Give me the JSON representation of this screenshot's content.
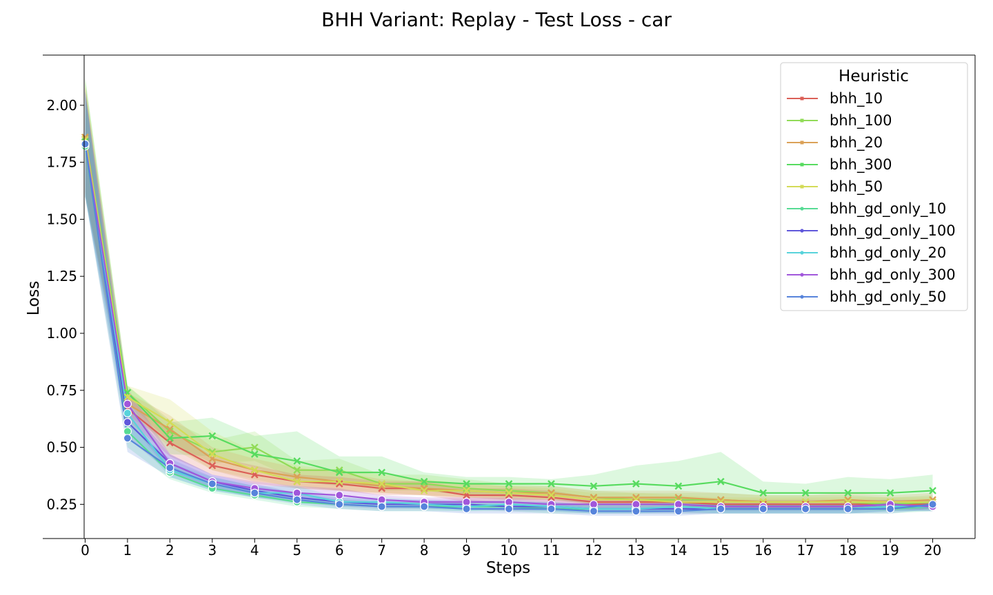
{
  "chart_data": {
    "type": "line",
    "title": "BHH Variant: Replay - Test Loss - car",
    "xlabel": "Steps",
    "ylabel": "Loss",
    "x": [
      0,
      1,
      2,
      3,
      4,
      5,
      6,
      7,
      8,
      9,
      10,
      11,
      12,
      13,
      14,
      15,
      16,
      17,
      18,
      19,
      20
    ],
    "xlim": [
      -1,
      21
    ],
    "ylim": [
      0.1,
      2.22
    ],
    "yticks": [
      0.25,
      0.5,
      0.75,
      1.0,
      1.25,
      1.5,
      1.75,
      2.0
    ],
    "ytick_labels": [
      "0.25",
      "0.50",
      "0.75",
      "1.00",
      "1.25",
      "1.50",
      "1.75",
      "2.00"
    ],
    "xtick_labels": [
      "0",
      "1",
      "2",
      "3",
      "4",
      "5",
      "6",
      "7",
      "8",
      "9",
      "10",
      "11",
      "12",
      "13",
      "14",
      "15",
      "16",
      "17",
      "18",
      "19",
      "20"
    ],
    "legend": {
      "title": "Heuristic",
      "position": "upper right"
    },
    "grid": false,
    "series": [
      {
        "name": "bhh_10",
        "color": "#db5f57",
        "marker": "x",
        "values": [
          1.85,
          0.67,
          0.52,
          0.42,
          0.38,
          0.35,
          0.34,
          0.32,
          0.32,
          0.29,
          0.29,
          0.28,
          0.26,
          0.26,
          0.26,
          0.25,
          0.25,
          0.25,
          0.25,
          0.25,
          0.25
        ]
      },
      {
        "name": "bhh_100",
        "color": "#91db57",
        "marker": "x",
        "values": [
          1.86,
          0.74,
          0.57,
          0.48,
          0.5,
          0.4,
          0.4,
          0.34,
          0.34,
          0.32,
          0.31,
          0.3,
          0.28,
          0.27,
          0.27,
          0.27,
          0.26,
          0.26,
          0.26,
          0.25,
          0.26
        ]
      },
      {
        "name": "bhh_20",
        "color": "#dba157",
        "marker": "x",
        "values": [
          1.86,
          0.69,
          0.58,
          0.45,
          0.4,
          0.37,
          0.35,
          0.33,
          0.32,
          0.31,
          0.3,
          0.3,
          0.28,
          0.28,
          0.28,
          0.27,
          0.26,
          0.26,
          0.27,
          0.26,
          0.27
        ]
      },
      {
        "name": "bhh_300",
        "color": "#57db5f",
        "marker": "x",
        "values": [
          1.84,
          0.74,
          0.54,
          0.55,
          0.47,
          0.44,
          0.39,
          0.39,
          0.35,
          0.34,
          0.34,
          0.34,
          0.33,
          0.34,
          0.33,
          0.35,
          0.3,
          0.3,
          0.3,
          0.3,
          0.31
        ]
      },
      {
        "name": "bhh_50",
        "color": "#d3db57",
        "marker": "x",
        "values": [
          1.85,
          0.72,
          0.61,
          0.47,
          0.4,
          0.35,
          0.35,
          0.34,
          0.31,
          0.31,
          0.3,
          0.29,
          0.27,
          0.27,
          0.26,
          0.26,
          0.26,
          0.26,
          0.26,
          0.26,
          0.26
        ]
      },
      {
        "name": "bhh_gd_only_10",
        "color": "#57db94",
        "marker": "o",
        "values": [
          1.82,
          0.57,
          0.39,
          0.32,
          0.29,
          0.26,
          0.25,
          0.24,
          0.24,
          0.24,
          0.24,
          0.23,
          0.23,
          0.23,
          0.23,
          0.23,
          0.23,
          0.23,
          0.23,
          0.23,
          0.24
        ]
      },
      {
        "name": "bhh_gd_only_100",
        "color": "#5f57db",
        "marker": "o",
        "values": [
          1.83,
          0.61,
          0.43,
          0.35,
          0.31,
          0.28,
          0.26,
          0.25,
          0.25,
          0.25,
          0.24,
          0.24,
          0.23,
          0.23,
          0.23,
          0.23,
          0.23,
          0.23,
          0.23,
          0.24,
          0.24
        ]
      },
      {
        "name": "bhh_gd_only_20",
        "color": "#57d3db",
        "marker": "o",
        "values": [
          1.83,
          0.65,
          0.4,
          0.34,
          0.3,
          0.3,
          0.26,
          0.26,
          0.25,
          0.24,
          0.25,
          0.24,
          0.23,
          0.23,
          0.24,
          0.23,
          0.23,
          0.23,
          0.23,
          0.24,
          0.24
        ]
      },
      {
        "name": "bhh_gd_only_300",
        "color": "#a157db",
        "marker": "o",
        "values": [
          1.83,
          0.69,
          0.43,
          0.35,
          0.32,
          0.3,
          0.29,
          0.27,
          0.26,
          0.26,
          0.26,
          0.25,
          0.25,
          0.25,
          0.25,
          0.24,
          0.24,
          0.24,
          0.24,
          0.25,
          0.24
        ]
      },
      {
        "name": "bhh_gd_only_50",
        "color": "#5784db",
        "marker": "o",
        "values": [
          1.83,
          0.54,
          0.41,
          0.34,
          0.3,
          0.27,
          0.25,
          0.24,
          0.24,
          0.23,
          0.23,
          0.23,
          0.22,
          0.22,
          0.22,
          0.23,
          0.23,
          0.23,
          0.23,
          0.23,
          0.25
        ]
      }
    ],
    "bands": [
      {
        "series": "bhh_300",
        "lower": [
          1.6,
          0.7,
          0.47,
          0.46,
          0.41,
          0.35,
          0.33,
          0.33,
          0.31,
          0.29,
          0.29,
          0.29,
          0.28,
          0.26,
          0.25,
          0.22,
          0.25,
          0.26,
          0.25,
          0.26,
          0.26
        ],
        "upper": [
          2.12,
          0.77,
          0.61,
          0.63,
          0.55,
          0.57,
          0.46,
          0.46,
          0.39,
          0.37,
          0.37,
          0.36,
          0.38,
          0.42,
          0.44,
          0.48,
          0.35,
          0.34,
          0.37,
          0.36,
          0.38
        ]
      },
      {
        "series": "bhh_50",
        "lower": [
          1.6,
          0.66,
          0.5,
          0.4,
          0.36,
          0.32,
          0.31,
          0.3,
          0.29,
          0.28,
          0.27,
          0.27,
          0.25,
          0.25,
          0.24,
          0.24,
          0.24,
          0.24,
          0.24,
          0.24,
          0.24
        ],
        "upper": [
          2.1,
          0.77,
          0.71,
          0.57,
          0.48,
          0.42,
          0.4,
          0.38,
          0.36,
          0.34,
          0.33,
          0.32,
          0.3,
          0.3,
          0.29,
          0.28,
          0.28,
          0.28,
          0.28,
          0.28,
          0.28
        ]
      },
      {
        "series": "bhh_100",
        "lower": [
          1.62,
          0.7,
          0.52,
          0.43,
          0.44,
          0.36,
          0.36,
          0.31,
          0.31,
          0.29,
          0.28,
          0.27,
          0.25,
          0.25,
          0.24,
          0.24,
          0.23,
          0.23,
          0.23,
          0.22,
          0.23
        ],
        "upper": [
          2.12,
          0.77,
          0.62,
          0.53,
          0.57,
          0.44,
          0.45,
          0.38,
          0.38,
          0.36,
          0.34,
          0.33,
          0.31,
          0.3,
          0.3,
          0.3,
          0.29,
          0.29,
          0.29,
          0.28,
          0.29
        ]
      },
      {
        "series": "bhh_20",
        "lower": [
          1.62,
          0.64,
          0.52,
          0.4,
          0.35,
          0.33,
          0.31,
          0.3,
          0.29,
          0.28,
          0.27,
          0.27,
          0.25,
          0.25,
          0.25,
          0.24,
          0.23,
          0.23,
          0.24,
          0.23,
          0.24
        ],
        "upper": [
          2.08,
          0.74,
          0.64,
          0.5,
          0.45,
          0.41,
          0.39,
          0.36,
          0.35,
          0.34,
          0.33,
          0.33,
          0.31,
          0.31,
          0.31,
          0.3,
          0.29,
          0.29,
          0.3,
          0.29,
          0.3
        ]
      },
      {
        "series": "bhh_10",
        "lower": [
          1.62,
          0.62,
          0.46,
          0.38,
          0.34,
          0.32,
          0.31,
          0.29,
          0.29,
          0.26,
          0.26,
          0.25,
          0.24,
          0.24,
          0.23,
          0.23,
          0.23,
          0.23,
          0.23,
          0.23,
          0.23
        ],
        "upper": [
          2.08,
          0.72,
          0.58,
          0.46,
          0.42,
          0.38,
          0.37,
          0.35,
          0.35,
          0.32,
          0.32,
          0.31,
          0.28,
          0.28,
          0.28,
          0.27,
          0.27,
          0.27,
          0.27,
          0.27,
          0.27
        ]
      },
      {
        "series": "bhh_gd_only_300",
        "lower": [
          1.6,
          0.62,
          0.39,
          0.32,
          0.29,
          0.27,
          0.26,
          0.25,
          0.24,
          0.24,
          0.24,
          0.23,
          0.23,
          0.23,
          0.23,
          0.22,
          0.22,
          0.22,
          0.22,
          0.23,
          0.22
        ],
        "upper": [
          2.06,
          0.76,
          0.47,
          0.38,
          0.35,
          0.33,
          0.32,
          0.29,
          0.28,
          0.28,
          0.28,
          0.27,
          0.27,
          0.27,
          0.27,
          0.26,
          0.26,
          0.26,
          0.26,
          0.27,
          0.26
        ]
      },
      {
        "series": "bhh_gd_only_100",
        "lower": [
          1.6,
          0.54,
          0.39,
          0.32,
          0.28,
          0.26,
          0.24,
          0.23,
          0.23,
          0.23,
          0.22,
          0.22,
          0.21,
          0.21,
          0.21,
          0.21,
          0.21,
          0.21,
          0.21,
          0.22,
          0.22
        ],
        "upper": [
          2.06,
          0.68,
          0.47,
          0.38,
          0.34,
          0.3,
          0.28,
          0.27,
          0.27,
          0.27,
          0.26,
          0.26,
          0.25,
          0.25,
          0.25,
          0.25,
          0.25,
          0.25,
          0.25,
          0.26,
          0.26
        ]
      },
      {
        "series": "bhh_gd_only_20",
        "lower": [
          1.6,
          0.58,
          0.37,
          0.31,
          0.28,
          0.27,
          0.24,
          0.24,
          0.23,
          0.22,
          0.23,
          0.22,
          0.21,
          0.21,
          0.22,
          0.21,
          0.21,
          0.21,
          0.21,
          0.22,
          0.22
        ],
        "upper": [
          2.06,
          0.72,
          0.43,
          0.37,
          0.33,
          0.33,
          0.28,
          0.28,
          0.27,
          0.26,
          0.27,
          0.26,
          0.25,
          0.25,
          0.26,
          0.25,
          0.25,
          0.25,
          0.25,
          0.26,
          0.26
        ]
      },
      {
        "series": "bhh_gd_only_10",
        "lower": [
          1.6,
          0.5,
          0.36,
          0.3,
          0.27,
          0.24,
          0.23,
          0.22,
          0.22,
          0.22,
          0.22,
          0.21,
          0.21,
          0.21,
          0.21,
          0.21,
          0.21,
          0.21,
          0.21,
          0.21,
          0.22
        ],
        "upper": [
          2.04,
          0.64,
          0.42,
          0.34,
          0.31,
          0.28,
          0.27,
          0.26,
          0.26,
          0.26,
          0.26,
          0.25,
          0.25,
          0.25,
          0.25,
          0.25,
          0.25,
          0.25,
          0.25,
          0.25,
          0.26
        ]
      },
      {
        "series": "bhh_gd_only_50",
        "lower": [
          1.6,
          0.48,
          0.37,
          0.31,
          0.28,
          0.25,
          0.23,
          0.22,
          0.22,
          0.21,
          0.21,
          0.21,
          0.2,
          0.2,
          0.2,
          0.21,
          0.21,
          0.21,
          0.21,
          0.21,
          0.23
        ],
        "upper": [
          2.06,
          0.6,
          0.45,
          0.37,
          0.33,
          0.3,
          0.27,
          0.26,
          0.26,
          0.25,
          0.25,
          0.25,
          0.24,
          0.24,
          0.24,
          0.25,
          0.25,
          0.25,
          0.25,
          0.25,
          0.27
        ]
      }
    ]
  }
}
